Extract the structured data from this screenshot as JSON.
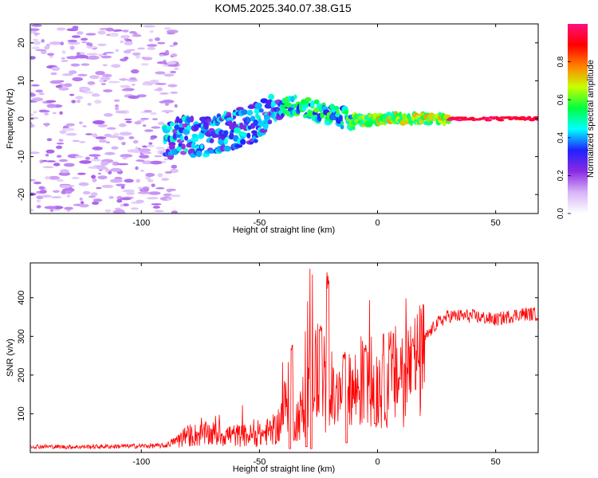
{
  "title": "KOM5.2025.340.07.38.G15",
  "chart_data": [
    {
      "type": "heatmap",
      "name": "spectrogram",
      "xlabel": "Height of straight line (km)",
      "ylabel": "Frequency (Hz)",
      "xlim": [
        -147,
        68
      ],
      "ylim": [
        -25,
        25
      ],
      "xticks": [
        -100,
        -50,
        0,
        50
      ],
      "yticks": [
        -20,
        -10,
        0,
        10,
        20
      ],
      "ridge": [
        [
          -88,
          -5
        ],
        [
          -80,
          -4.5
        ],
        [
          -75,
          -5
        ],
        [
          -70,
          -4.5
        ],
        [
          -65,
          -3.5
        ],
        [
          -60,
          -2.5
        ],
        [
          -55,
          -1.5
        ],
        [
          -50,
          -1
        ],
        [
          -45,
          1.5
        ],
        [
          -40,
          3
        ],
        [
          -35,
          3.5
        ],
        [
          -30,
          3
        ],
        [
          -25,
          2
        ],
        [
          -20,
          1
        ],
        [
          -15,
          0.3
        ],
        [
          -10,
          -0.3
        ],
        [
          -5,
          -0.5
        ],
        [
          0,
          -0.2
        ],
        [
          5,
          0.2
        ],
        [
          10,
          0
        ],
        [
          20,
          0
        ],
        [
          68,
          0
        ]
      ],
      "colorbar": {
        "label": "Normalized spectral amplitude",
        "ticks": [
          "0.0",
          "0.2",
          "0.4",
          "0.6",
          "0.8"
        ],
        "range": [
          0,
          1
        ],
        "stops": [
          "#ffffff",
          "#d8b4f8",
          "#8a2be2",
          "#2020ff",
          "#00ffff",
          "#00ff40",
          "#c8ff00",
          "#ff8000",
          "#ff0000",
          "#ff1080"
        ]
      }
    },
    {
      "type": "line",
      "name": "snr",
      "xlabel": "Height of straight line (km)",
      "ylabel": "SNR (v/v)",
      "xlim": [
        -147,
        68
      ],
      "ylim": [
        0,
        490
      ],
      "xticks": [
        -100,
        -50,
        0,
        50
      ],
      "yticks": [
        100,
        200,
        300,
        400
      ],
      "color": "#ff0000",
      "envelope": [
        [
          -147,
          20
        ],
        [
          -130,
          18
        ],
        [
          -110,
          20
        ],
        [
          -90,
          22
        ],
        [
          -85,
          40
        ],
        [
          -80,
          55
        ],
        [
          -70,
          60
        ],
        [
          -60,
          55
        ],
        [
          -50,
          55
        ],
        [
          -42,
          80
        ],
        [
          -38,
          180
        ],
        [
          -35,
          100
        ],
        [
          -30,
          150
        ],
        [
          -28,
          350
        ],
        [
          -25,
          200
        ],
        [
          -20,
          160
        ],
        [
          -15,
          180
        ],
        [
          -10,
          200
        ],
        [
          -5,
          230
        ],
        [
          0,
          220
        ],
        [
          5,
          240
        ],
        [
          10,
          250
        ],
        [
          15,
          270
        ],
        [
          20,
          300
        ],
        [
          25,
          340
        ],
        [
          30,
          360
        ],
        [
          40,
          360
        ],
        [
          50,
          350
        ],
        [
          60,
          365
        ],
        [
          68,
          365
        ]
      ],
      "spikes": [
        [
          -28,
          480
        ],
        [
          -21,
          470
        ],
        [
          -36.5,
          280
        ],
        [
          -24,
          330
        ],
        [
          -14,
          260
        ],
        [
          -5,
          280
        ],
        [
          15,
          300
        ]
      ],
      "dips": [
        [
          -37,
          10
        ],
        [
          -30,
          15
        ],
        [
          -28,
          10
        ],
        [
          -13,
          25
        ],
        [
          -1,
          75
        ]
      ]
    }
  ]
}
